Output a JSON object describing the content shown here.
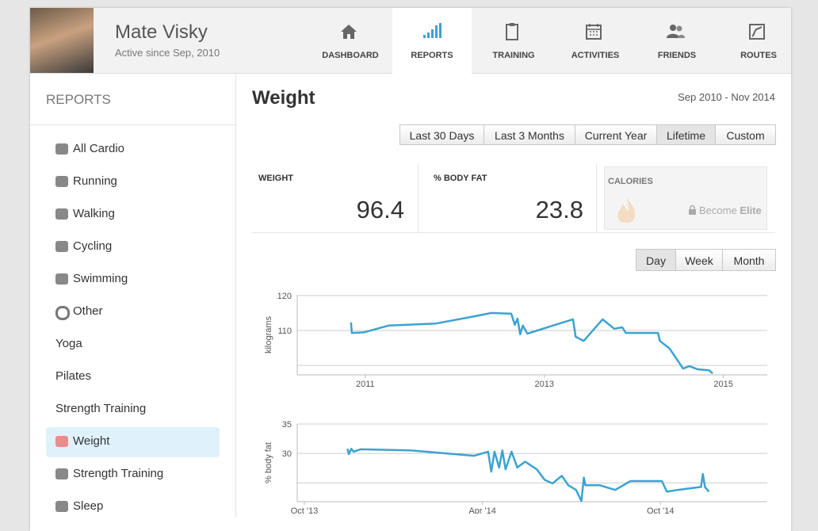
{
  "header": {
    "name": "Mate Visky",
    "subtitle": "Active since Sep, 2010"
  },
  "nav": [
    "DASHBOARD",
    "REPORTS",
    "TRAINING",
    "ACTIVITIES",
    "FRIENDS",
    "ROUTES"
  ],
  "sidebar": {
    "title": "REPORTS",
    "items": [
      "All Cardio",
      "Running",
      "Walking",
      "Cycling",
      "Swimming",
      "Other",
      "Yoga",
      "Pilates",
      "Strength Training",
      "Weight",
      "Strength Training",
      "Sleep"
    ]
  },
  "main": {
    "title": "Weight",
    "date_range": "Sep 2010 - Nov 2014",
    "range_buttons": [
      "Last 30 Days",
      "Last 3 Months",
      "Current Year",
      "Lifetime",
      "Custom"
    ],
    "stats": [
      {
        "label": "WEIGHT",
        "value": "96.4"
      },
      {
        "label": "% BODY FAT",
        "value": "23.8"
      }
    ],
    "calories": {
      "label": "CALORIES",
      "lock_text": "Become",
      "lock_strong": "Elite"
    },
    "period_buttons": [
      "Day",
      "Week",
      "Month"
    ]
  },
  "charts": [
    {
      "type": "line",
      "ylabel": "kilograms",
      "color": "#3ba3d0",
      "xlim": [
        2010.24,
        2015.49
      ],
      "xticks": [
        2011,
        2013,
        2015
      ],
      "ylim": [
        97.3,
        120.2
      ],
      "yticks": [
        110,
        120
      ],
      "grid_lines": [
        100,
        110,
        120
      ],
      "x": [
        2010.84,
        2010.85,
        2010.99,
        2011.26,
        2011.79,
        2012.23,
        2012.41,
        2012.63,
        2012.67,
        2012.7,
        2012.73,
        2012.76,
        2012.81,
        2013.12,
        2013.32,
        2013.35,
        2013.44,
        2013.65,
        2013.78,
        2013.87,
        2013.91,
        2014.27,
        2014.29,
        2014.4,
        2014.49,
        2014.55,
        2014.62,
        2014.71,
        2014.84,
        2014.88
      ],
      "values": [
        112.3,
        109.3,
        109.5,
        111.4,
        112.0,
        114.1,
        115.0,
        114.8,
        111.6,
        113.4,
        108.9,
        111.4,
        109.1,
        111.6,
        113.2,
        108.2,
        107.0,
        113.2,
        110.5,
        110.9,
        109.3,
        109.3,
        107.0,
        104.8,
        101.4,
        99.1,
        99.8,
        98.9,
        98.6,
        97.7
      ]
    },
    {
      "type": "line",
      "ylabel": "% body fat",
      "color": "#3ba3d0",
      "xlim": [
        2013.73,
        2015.05
      ],
      "xticks": [
        {
          "value": 2013.75,
          "label": "Oct '13"
        },
        {
          "value": 2014.25,
          "label": "Apr '14"
        },
        {
          "value": 2014.75,
          "label": "Oct '14"
        }
      ],
      "ylim": [
        21.8,
        35
      ],
      "yticks": [
        30,
        35
      ],
      "grid_lines": [
        25,
        30,
        35
      ],
      "x": [
        2013.871,
        2013.875,
        2013.882,
        2013.888,
        2013.908,
        2014.051,
        2014.227,
        2014.266,
        2014.275,
        2014.284,
        2014.297,
        2014.306,
        2014.315,
        2014.332,
        2014.348,
        2014.37,
        2014.403,
        2014.425,
        2014.447,
        2014.473,
        2014.491,
        2014.513,
        2014.528,
        2014.535,
        2014.539,
        2014.579,
        2014.623,
        2014.666,
        2014.754,
        2014.768,
        2014.798,
        2014.864,
        2014.869,
        2014.875,
        2014.886
      ],
      "values": [
        30.8,
        29.9,
        30.8,
        30.3,
        30.7,
        30.5,
        29.6,
        30.3,
        26.9,
        30.3,
        27.6,
        30.5,
        27.3,
        30.3,
        27.6,
        28.6,
        27.3,
        25.5,
        24.9,
        26.2,
        24.6,
        23.8,
        21.9,
        25.9,
        24.6,
        24.6,
        23.8,
        25.3,
        25.3,
        23.5,
        23.8,
        24.3,
        26.5,
        24.3,
        23.5
      ]
    }
  ]
}
